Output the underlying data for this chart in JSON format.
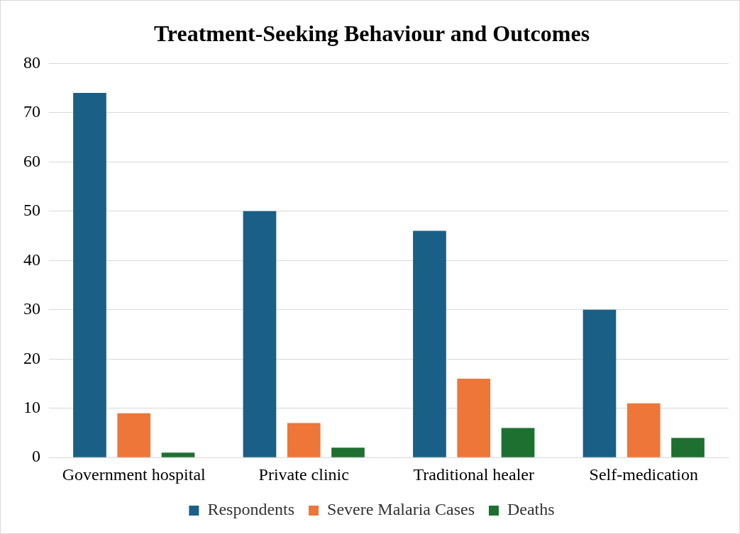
{
  "chart_data": {
    "type": "bar",
    "title": "Treatment-Seeking Behaviour and Outcomes",
    "categories": [
      "Government hospital",
      "Private clinic",
      "Traditional healer",
      "Self-medication"
    ],
    "series": [
      {
        "name": "Respondents",
        "color": "#1a5f86",
        "values": [
          74,
          50,
          46,
          30
        ]
      },
      {
        "name": "Severe Malaria Cases",
        "color": "#ed7638",
        "values": [
          9,
          7,
          16,
          11
        ]
      },
      {
        "name": "Deaths",
        "color": "#1e7030",
        "values": [
          1,
          2,
          6,
          4
        ]
      }
    ],
    "ylim": [
      0,
      80
    ],
    "yticks": [
      0,
      10,
      20,
      30,
      40,
      50,
      60,
      70,
      80
    ],
    "grid": "y",
    "legend": "bottom"
  }
}
